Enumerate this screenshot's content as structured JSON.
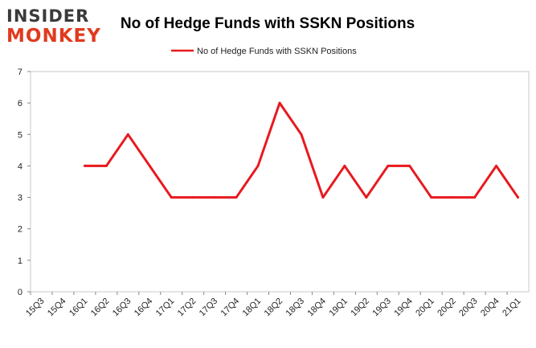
{
  "brand": {
    "logo_top": "INSIDER",
    "logo_bottom": "MONKEY"
  },
  "chart_data": {
    "type": "line",
    "title": "No of Hedge Funds with SSKN Positions",
    "xlabel": "",
    "ylabel": "",
    "categories": [
      "15Q3",
      "15Q4",
      "16Q1",
      "16Q2",
      "16Q3",
      "16Q4",
      "17Q1",
      "17Q2",
      "17Q3",
      "17Q4",
      "18Q1",
      "18Q2",
      "18Q3",
      "18Q4",
      "19Q1",
      "19Q2",
      "19Q3",
      "19Q4",
      "20Q1",
      "20Q2",
      "20Q3",
      "20Q4",
      "21Q1"
    ],
    "series": [
      {
        "name": "No of Hedge Funds with SSKN Positions",
        "color": "#e8191e",
        "values": [
          null,
          null,
          4,
          4,
          5,
          4,
          3,
          3,
          3,
          3,
          4,
          6,
          5,
          3,
          4,
          3,
          4,
          4,
          3,
          3,
          3,
          4,
          3
        ]
      }
    ],
    "ylim": [
      0,
      7
    ],
    "yticks": [
      0,
      1,
      2,
      3,
      4,
      5,
      6,
      7
    ],
    "grid": false,
    "legend": "top-center"
  }
}
